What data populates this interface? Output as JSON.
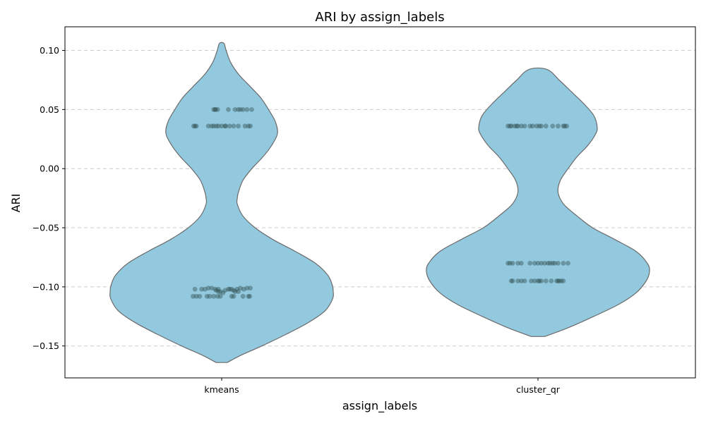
{
  "chart_data": {
    "type": "violin",
    "title": "ARI by assign_labels",
    "xlabel": "assign_labels",
    "ylabel": "ARI",
    "categories": [
      "kmeans",
      "cluster_qr"
    ],
    "ylim": [
      -0.177,
      0.12
    ],
    "yticks": [
      0.1,
      0.05,
      0.0,
      -0.05,
      -0.1,
      -0.15
    ],
    "ytick_labels": [
      "0.10",
      "0.05",
      "0.00",
      "−0.05",
      "−0.10",
      "−0.15"
    ],
    "grid": "horizontal-dashed",
    "colors": {
      "violin_fill": "#93c9de",
      "violin_edge": "#6b6b6b",
      "point": "#2f4f4f"
    },
    "series": [
      {
        "category": "kmeans",
        "range": [
          -0.164,
          0.106
        ],
        "density_profile": [
          [
            -0.164,
            0.05
          ],
          [
            -0.158,
            0.17
          ],
          [
            -0.15,
            0.36
          ],
          [
            -0.14,
            0.58
          ],
          [
            -0.13,
            0.78
          ],
          [
            -0.12,
            0.93
          ],
          [
            -0.11,
            0.995
          ],
          [
            -0.104,
            1.0
          ],
          [
            -0.098,
            0.99
          ],
          [
            -0.09,
            0.95
          ],
          [
            -0.08,
            0.84
          ],
          [
            -0.07,
            0.66
          ],
          [
            -0.06,
            0.46
          ],
          [
            -0.05,
            0.3
          ],
          [
            -0.04,
            0.19
          ],
          [
            -0.03,
            0.14
          ],
          [
            -0.025,
            0.14
          ],
          [
            -0.02,
            0.15
          ],
          [
            -0.01,
            0.19
          ],
          [
            0.0,
            0.27
          ],
          [
            0.01,
            0.37
          ],
          [
            0.02,
            0.45
          ],
          [
            0.03,
            0.5
          ],
          [
            0.04,
            0.48
          ],
          [
            0.05,
            0.42
          ],
          [
            0.06,
            0.35
          ],
          [
            0.07,
            0.25
          ],
          [
            0.08,
            0.15
          ],
          [
            0.09,
            0.08
          ],
          [
            0.1,
            0.04
          ],
          [
            0.106,
            0.02
          ]
        ],
        "points": [
          [
            -0.12,
            0.05
          ],
          [
            -0.1,
            0.05
          ],
          [
            -0.09,
            0.05
          ],
          [
            -0.06,
            0.05
          ],
          [
            0.1,
            0.05
          ],
          [
            0.2,
            0.05
          ],
          [
            0.25,
            0.05
          ],
          [
            0.28,
            0.05
          ],
          [
            0.32,
            0.05
          ],
          [
            0.38,
            0.05
          ],
          [
            0.45,
            0.05
          ],
          [
            -0.42,
            0.036
          ],
          [
            -0.4,
            0.036
          ],
          [
            -0.38,
            0.036
          ],
          [
            -0.2,
            0.036
          ],
          [
            -0.15,
            0.036
          ],
          [
            -0.12,
            0.036
          ],
          [
            -0.08,
            0.036
          ],
          [
            -0.05,
            0.036
          ],
          [
            0.0,
            0.036
          ],
          [
            0.05,
            0.036
          ],
          [
            0.06,
            0.036
          ],
          [
            0.12,
            0.036
          ],
          [
            0.18,
            0.036
          ],
          [
            0.25,
            0.036
          ],
          [
            0.35,
            0.036
          ],
          [
            0.4,
            0.036
          ],
          [
            0.43,
            0.036
          ],
          [
            -0.4,
            -0.102
          ],
          [
            -0.3,
            -0.102
          ],
          [
            -0.25,
            -0.102
          ],
          [
            -0.2,
            -0.101
          ],
          [
            -0.15,
            -0.101
          ],
          [
            -0.1,
            -0.102
          ],
          [
            -0.08,
            -0.103
          ],
          [
            -0.05,
            -0.102
          ],
          [
            -0.02,
            -0.104
          ],
          [
            0.02,
            -0.105
          ],
          [
            0.05,
            -0.103
          ],
          [
            0.1,
            -0.102
          ],
          [
            0.12,
            -0.102
          ],
          [
            0.15,
            -0.102
          ],
          [
            0.18,
            -0.103
          ],
          [
            0.2,
            -0.104
          ],
          [
            0.23,
            -0.102
          ],
          [
            0.28,
            -0.101
          ],
          [
            0.33,
            -0.102
          ],
          [
            0.38,
            -0.101
          ],
          [
            0.43,
            -0.101
          ],
          [
            -0.05,
            -0.104
          ],
          [
            0.25,
            -0.104
          ],
          [
            -0.43,
            -0.108
          ],
          [
            -0.38,
            -0.108
          ],
          [
            -0.33,
            -0.108
          ],
          [
            -0.22,
            -0.108
          ],
          [
            -0.18,
            -0.108
          ],
          [
            -0.12,
            -0.108
          ],
          [
            -0.06,
            -0.108
          ],
          [
            -0.02,
            -0.108
          ],
          [
            0.15,
            -0.108
          ],
          [
            0.18,
            -0.108
          ],
          [
            0.32,
            -0.108
          ],
          [
            0.4,
            -0.108
          ],
          [
            0.42,
            -0.108
          ]
        ]
      },
      {
        "category": "cluster_qr",
        "range": [
          -0.142,
          0.084
        ],
        "density_profile": [
          [
            -0.142,
            0.06
          ],
          [
            -0.135,
            0.26
          ],
          [
            -0.125,
            0.5
          ],
          [
            -0.115,
            0.72
          ],
          [
            -0.105,
            0.88
          ],
          [
            -0.095,
            0.97
          ],
          [
            -0.087,
            1.0
          ],
          [
            -0.08,
            0.98
          ],
          [
            -0.07,
            0.88
          ],
          [
            -0.06,
            0.69
          ],
          [
            -0.05,
            0.49
          ],
          [
            -0.04,
            0.35
          ],
          [
            -0.03,
            0.23
          ],
          [
            -0.02,
            0.18
          ],
          [
            -0.01,
            0.2
          ],
          [
            0.0,
            0.27
          ],
          [
            0.01,
            0.35
          ],
          [
            0.02,
            0.45
          ],
          [
            0.03,
            0.52
          ],
          [
            0.036,
            0.53
          ],
          [
            0.045,
            0.5
          ],
          [
            0.055,
            0.41
          ],
          [
            0.065,
            0.3
          ],
          [
            0.075,
            0.19
          ],
          [
            0.084,
            0.08
          ]
        ],
        "points": [
          [
            -0.45,
            0.036
          ],
          [
            -0.42,
            0.036
          ],
          [
            -0.4,
            0.036
          ],
          [
            -0.35,
            0.036
          ],
          [
            -0.32,
            0.036
          ],
          [
            -0.3,
            0.036
          ],
          [
            -0.25,
            0.036
          ],
          [
            -0.2,
            0.036
          ],
          [
            -0.12,
            0.036
          ],
          [
            -0.08,
            0.036
          ],
          [
            -0.02,
            0.036
          ],
          [
            0.02,
            0.036
          ],
          [
            0.05,
            0.036
          ],
          [
            0.12,
            0.036
          ],
          [
            0.22,
            0.036
          ],
          [
            0.3,
            0.036
          ],
          [
            0.38,
            0.036
          ],
          [
            0.4,
            0.036
          ],
          [
            0.43,
            0.036
          ],
          [
            -0.45,
            -0.08
          ],
          [
            -0.42,
            -0.08
          ],
          [
            -0.38,
            -0.08
          ],
          [
            -0.3,
            -0.08
          ],
          [
            -0.25,
            -0.08
          ],
          [
            -0.12,
            -0.08
          ],
          [
            -0.05,
            -0.08
          ],
          [
            0.0,
            -0.08
          ],
          [
            0.05,
            -0.08
          ],
          [
            0.1,
            -0.08
          ],
          [
            0.15,
            -0.08
          ],
          [
            0.18,
            -0.08
          ],
          [
            0.22,
            -0.08
          ],
          [
            0.25,
            -0.08
          ],
          [
            0.3,
            -0.08
          ],
          [
            0.38,
            -0.08
          ],
          [
            0.45,
            -0.08
          ],
          [
            -0.4,
            -0.095
          ],
          [
            -0.38,
            -0.095
          ],
          [
            -0.3,
            -0.095
          ],
          [
            -0.25,
            -0.095
          ],
          [
            -0.2,
            -0.095
          ],
          [
            -0.1,
            -0.095
          ],
          [
            -0.05,
            -0.095
          ],
          [
            0.0,
            -0.095
          ],
          [
            0.02,
            -0.095
          ],
          [
            0.05,
            -0.095
          ],
          [
            0.12,
            -0.095
          ],
          [
            0.2,
            -0.095
          ],
          [
            0.28,
            -0.095
          ],
          [
            0.3,
            -0.095
          ],
          [
            0.32,
            -0.095
          ],
          [
            0.35,
            -0.095
          ],
          [
            0.38,
            -0.095
          ]
        ]
      }
    ]
  }
}
